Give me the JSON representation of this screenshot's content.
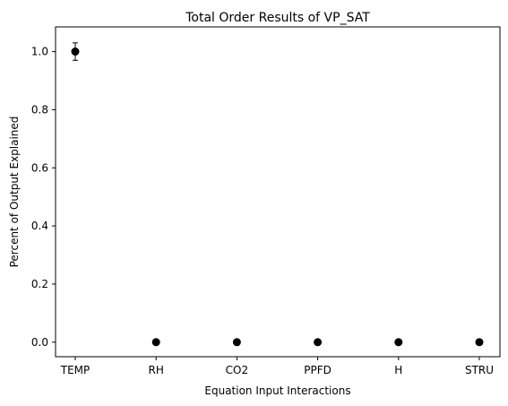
{
  "chart_data": {
    "type": "scatter",
    "title": "Total Order Results of VP_SAT",
    "xlabel": "Equation Input Interactions",
    "ylabel": "Percent of Output Explained",
    "categories": [
      "TEMP",
      "RH",
      "CO2",
      "PPFD",
      "H",
      "STRU"
    ],
    "series": [
      {
        "values": [
          1.0,
          0.0,
          0.0,
          0.0,
          0.0,
          0.0
        ],
        "errors": [
          0.03,
          0.0,
          0.0,
          0.0,
          0.0,
          0.0
        ],
        "color": "#000000"
      }
    ],
    "yticks": [
      0.0,
      0.2,
      0.4,
      0.6,
      0.8,
      1.0
    ],
    "ytick_labels": [
      "0.0",
      "0.2",
      "0.4",
      "0.6",
      "0.8",
      "1.0"
    ],
    "ylim": [
      -0.05,
      1.085
    ],
    "grid": false,
    "legend": false
  }
}
